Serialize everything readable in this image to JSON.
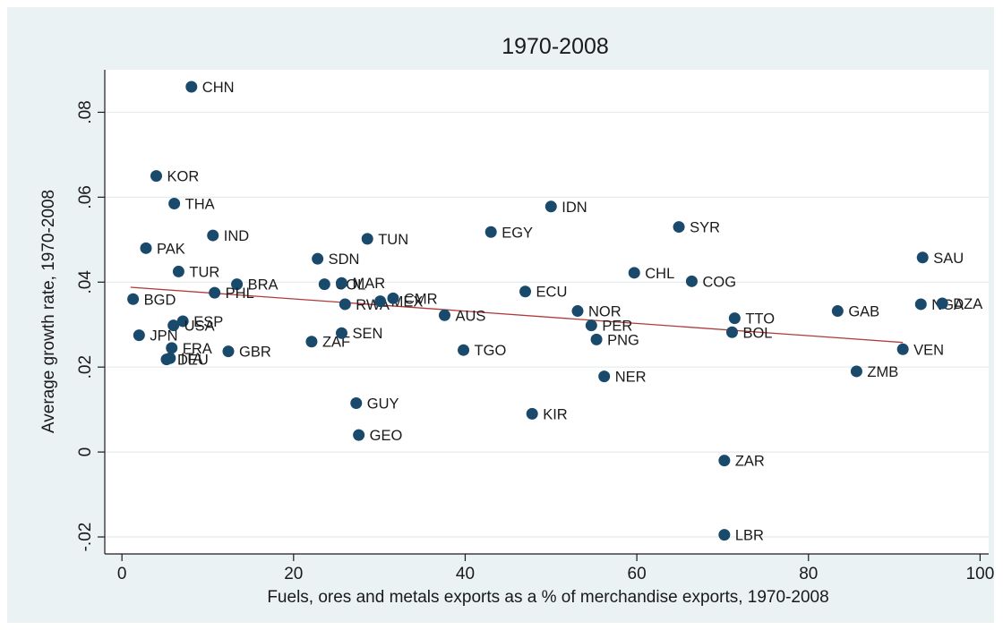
{
  "chart_data": {
    "type": "scatter",
    "title": "1970-2008",
    "xlabel": "Fuels, ores and metals exports as a % of merchandise exports, 1970-2008",
    "ylabel": "Average growth rate, 1970-2008",
    "xlim": [
      -2,
      101
    ],
    "ylim": [
      -0.024,
      0.09
    ],
    "xticks": [
      0,
      20,
      40,
      60,
      80,
      100
    ],
    "xtick_labels": [
      "0",
      "20",
      "40",
      "60",
      "80",
      "100"
    ],
    "yticks": [
      -0.02,
      0,
      0.02,
      0.04,
      0.06,
      0.08
    ],
    "ytick_labels": [
      "-.02",
      "0",
      ".02",
      ".04",
      ".06",
      ".08"
    ],
    "grid": "horizontal",
    "legend": "none",
    "fit_line": {
      "x": [
        1,
        91
      ],
      "y": [
        0.0388,
        0.0258
      ]
    },
    "colors": {
      "marker": "#1a4a6b",
      "fit_line": "#b03a3a",
      "plot_bg": "#ffffff",
      "outer_bg": "#eaf2f3",
      "grid": "#e3ebee"
    },
    "points": [
      {
        "label": "CHN",
        "x": 8.1,
        "y": 0.086
      },
      {
        "label": "KOR",
        "x": 4.0,
        "y": 0.065
      },
      {
        "label": "THA",
        "x": 6.1,
        "y": 0.0585
      },
      {
        "label": "IND",
        "x": 10.6,
        "y": 0.051
      },
      {
        "label": "PAK",
        "x": 2.8,
        "y": 0.048
      },
      {
        "label": "TUR",
        "x": 6.6,
        "y": 0.0425
      },
      {
        "label": "BRA",
        "x": 13.4,
        "y": 0.0395
      },
      {
        "label": "PHL",
        "x": 10.8,
        "y": 0.0375
      },
      {
        "label": "BGD",
        "x": 1.3,
        "y": 0.036
      },
      {
        "label": "ESP",
        "x": 7.1,
        "y": 0.0308
      },
      {
        "label": "USA",
        "x": 6.0,
        "y": 0.0298
      },
      {
        "label": "JPN",
        "x": 2.0,
        "y": 0.0275
      },
      {
        "label": "FRA",
        "x": 5.8,
        "y": 0.0245
      },
      {
        "label": "GBR",
        "x": 12.4,
        "y": 0.0237
      },
      {
        "label": "DEU",
        "x": 5.2,
        "y": 0.0218
      },
      {
        "label": "ITA",
        "x": 5.6,
        "y": 0.0221
      },
      {
        "label": "SDN",
        "x": 22.8,
        "y": 0.0455
      },
      {
        "label": "TUN",
        "x": 28.6,
        "y": 0.0502
      },
      {
        "label": "COL",
        "x": 23.6,
        "y": 0.0395
      },
      {
        "label": "MAR",
        "x": 25.6,
        "y": 0.0398
      },
      {
        "label": "RWA",
        "x": 26.0,
        "y": 0.0348
      },
      {
        "label": "MEX",
        "x": 30.1,
        "y": 0.0355
      },
      {
        "label": "CMR",
        "x": 31.6,
        "y": 0.0362
      },
      {
        "label": "ZAF",
        "x": 22.1,
        "y": 0.026
      },
      {
        "label": "SEN",
        "x": 25.6,
        "y": 0.028
      },
      {
        "label": "GUY",
        "x": 27.3,
        "y": 0.0115
      },
      {
        "label": "GEO",
        "x": 27.6,
        "y": 0.004
      },
      {
        "label": "EGY",
        "x": 43.0,
        "y": 0.0518
      },
      {
        "label": "IDN",
        "x": 50.0,
        "y": 0.0578
      },
      {
        "label": "ECU",
        "x": 47.0,
        "y": 0.0378
      },
      {
        "label": "AUS",
        "x": 37.6,
        "y": 0.0322
      },
      {
        "label": "TGO",
        "x": 39.8,
        "y": 0.024
      },
      {
        "label": "KIR",
        "x": 47.8,
        "y": 0.009
      },
      {
        "label": "NOR",
        "x": 53.1,
        "y": 0.0332
      },
      {
        "label": "PER",
        "x": 54.7,
        "y": 0.0298
      },
      {
        "label": "PNG",
        "x": 55.3,
        "y": 0.0265
      },
      {
        "label": "NER",
        "x": 56.2,
        "y": 0.0178
      },
      {
        "label": "SYR",
        "x": 64.9,
        "y": 0.053
      },
      {
        "label": "CHL",
        "x": 59.7,
        "y": 0.0422
      },
      {
        "label": "COG",
        "x": 66.4,
        "y": 0.0402
      },
      {
        "label": "TTO",
        "x": 71.4,
        "y": 0.0315
      },
      {
        "label": "BOL",
        "x": 71.1,
        "y": 0.0282
      },
      {
        "label": "ZAR",
        "x": 70.2,
        "y": -0.002
      },
      {
        "label": "LBR",
        "x": 70.2,
        "y": -0.0195
      },
      {
        "label": "GAB",
        "x": 83.4,
        "y": 0.0332
      },
      {
        "label": "ZMB",
        "x": 85.6,
        "y": 0.019
      },
      {
        "label": "SAU",
        "x": 93.3,
        "y": 0.0458
      },
      {
        "label": "NGA",
        "x": 93.1,
        "y": 0.0348
      },
      {
        "label": "DZA",
        "x": 95.6,
        "y": 0.035
      },
      {
        "label": "VEN",
        "x": 91.0,
        "y": 0.0242
      }
    ]
  }
}
